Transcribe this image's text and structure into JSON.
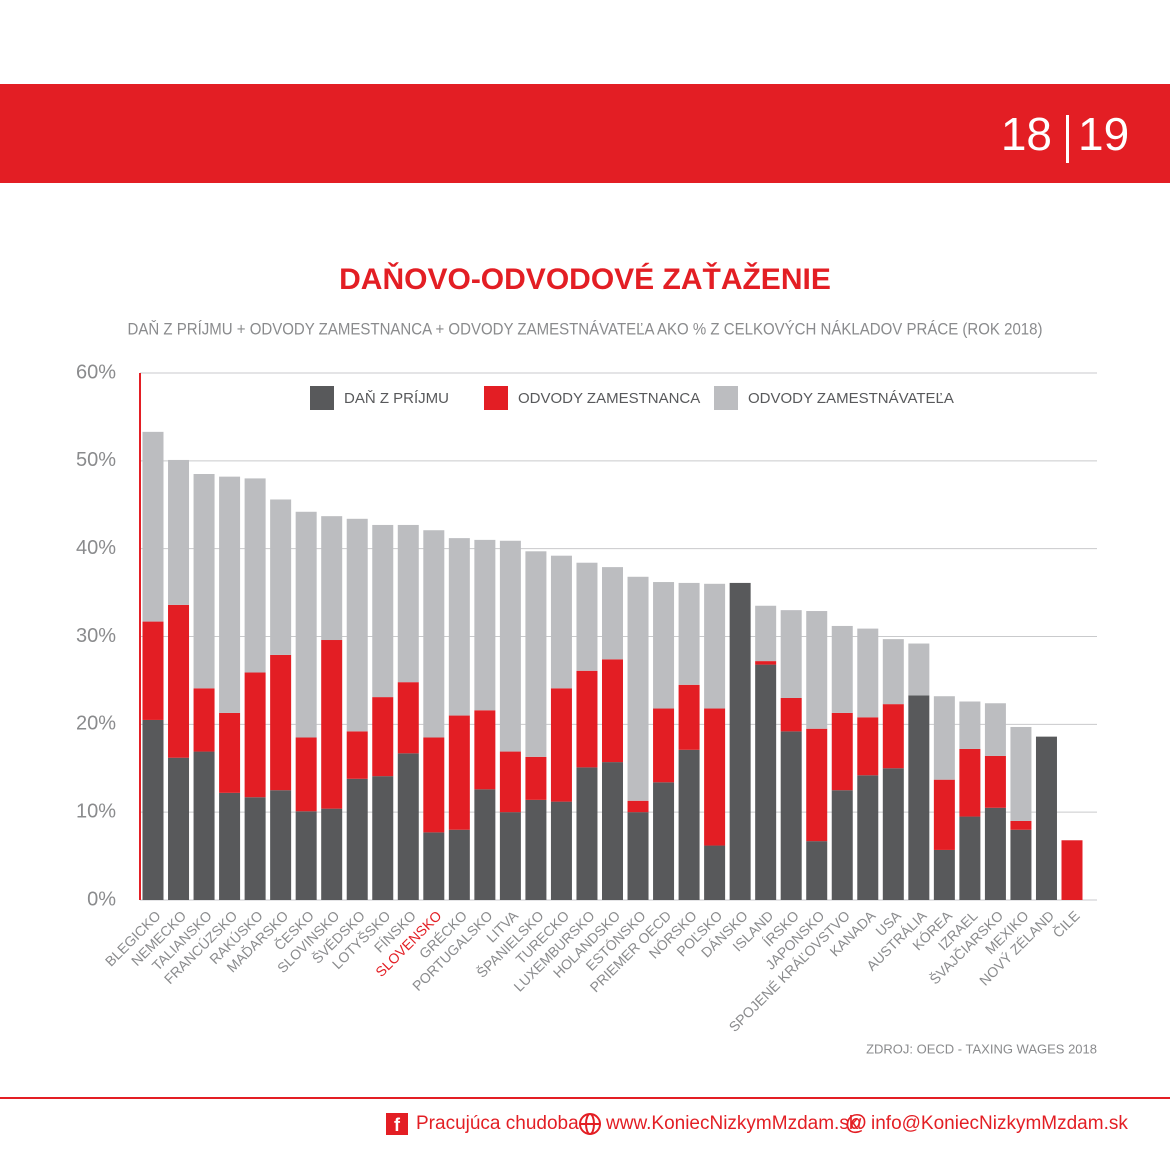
{
  "page_number": {
    "left": "18",
    "right": "19"
  },
  "chart_data": {
    "type": "stacked-bar",
    "title": "DAŇOVO-ODVODOVÉ ZAŤAŽENIE",
    "subtitle": "DAŇ Z PRÍJMU + ODVODY ZAMESTNANCA + ODVODY ZAMESTNÁVATEĽA AKO % Z CELKOVÝCH NÁKLADOV PRÁCE (ROK 2018)",
    "categories": [
      "BLEGICKO",
      "NEMECKO",
      "TALIANSKO",
      "FRANCÚZSKO",
      "RAKÚSKO",
      "MAĎARSKO",
      "ČESKO",
      "SLOVINSKO",
      "ŠVÉDSKO",
      "LOTYŠSKO",
      "FÍNSKO",
      "SLOVENSKO",
      "GRÉCKO",
      "PORTUGALSKO",
      "LITVA",
      "ŠPANIELSKO",
      "TURECKO",
      "LUXEMBURSKO",
      "HOLANDSKO",
      "ESTÓNSKO",
      "PRIEMER OECD",
      "NÓRSKO",
      "POĽSKO",
      "DÁNSKO",
      "ISLAND",
      "ÍRSKO",
      "JAPONSKO",
      "SPOJENÉ KRÁĽOVSTVO",
      "KANADA",
      "USA",
      "AUSTRÁLIA",
      "KÓREA",
      "IZRAEL",
      "ŠVAJČIARSKO",
      "MEXIKO",
      "NOVÝ ZÉLAND",
      "ČILE"
    ],
    "series": [
      {
        "name": "DAŇ Z PRÍJMU",
        "color": "#58595b",
        "values": [
          20.5,
          16.2,
          16.9,
          12.2,
          11.7,
          12.5,
          10.1,
          10.4,
          13.8,
          14.1,
          16.7,
          7.7,
          8.0,
          12.6,
          10.0,
          11.4,
          11.2,
          15.1,
          15.7,
          10.0,
          13.4,
          17.1,
          6.2,
          36.1,
          26.8,
          19.2,
          6.7,
          12.5,
          14.2,
          15.0,
          23.3,
          5.7,
          9.5,
          10.5,
          8.0,
          18.6,
          0
        ]
      },
      {
        "name": "ODVODY ZAMESTNANCA",
        "color": "#e31e24",
        "values": [
          11.2,
          17.4,
          7.2,
          9.1,
          14.2,
          15.4,
          8.4,
          19.2,
          5.4,
          9.0,
          8.1,
          10.8,
          13.0,
          9.0,
          6.9,
          4.9,
          12.9,
          11.0,
          11.7,
          1.3,
          8.4,
          7.4,
          15.6,
          0,
          0.4,
          3.8,
          12.8,
          8.8,
          6.6,
          7.3,
          0,
          8.0,
          7.7,
          5.9,
          1.0,
          0,
          6.8
        ]
      },
      {
        "name": "ODVODY ZAMESTNÁVATEĽA",
        "color": "#bcbdc0",
        "values": [
          21.6,
          16.5,
          24.4,
          26.9,
          22.1,
          17.7,
          25.7,
          14.1,
          24.2,
          19.6,
          17.9,
          23.6,
          20.2,
          19.4,
          24.0,
          23.4,
          15.1,
          12.3,
          10.5,
          25.5,
          14.4,
          11.6,
          14.2,
          0,
          6.3,
          10.0,
          13.4,
          9.9,
          10.1,
          7.4,
          5.9,
          9.5,
          5.4,
          6.0,
          10.7,
          0,
          0
        ]
      }
    ],
    "ylim": [
      0,
      60
    ],
    "yticks": [
      {
        "value": 0,
        "label": "0%"
      },
      {
        "value": 10,
        "label": "10%"
      },
      {
        "value": 20,
        "label": "20%"
      },
      {
        "value": 30,
        "label": "30%"
      },
      {
        "value": 40,
        "label": "40%"
      },
      {
        "value": 50,
        "label": "50%"
      },
      {
        "value": 60,
        "label": "60%"
      }
    ],
    "grid": true,
    "highlight": {
      "category": 11,
      "color": "#e31e24"
    },
    "source": "ZDROJ: OECD - TAXING WAGES 2018"
  },
  "footer": {
    "facebook": "Pracujúca chudoba",
    "web": "www.KoniecNizkymMzdam.sk",
    "email": "info@KoniecNizkymMzdam.sk"
  }
}
